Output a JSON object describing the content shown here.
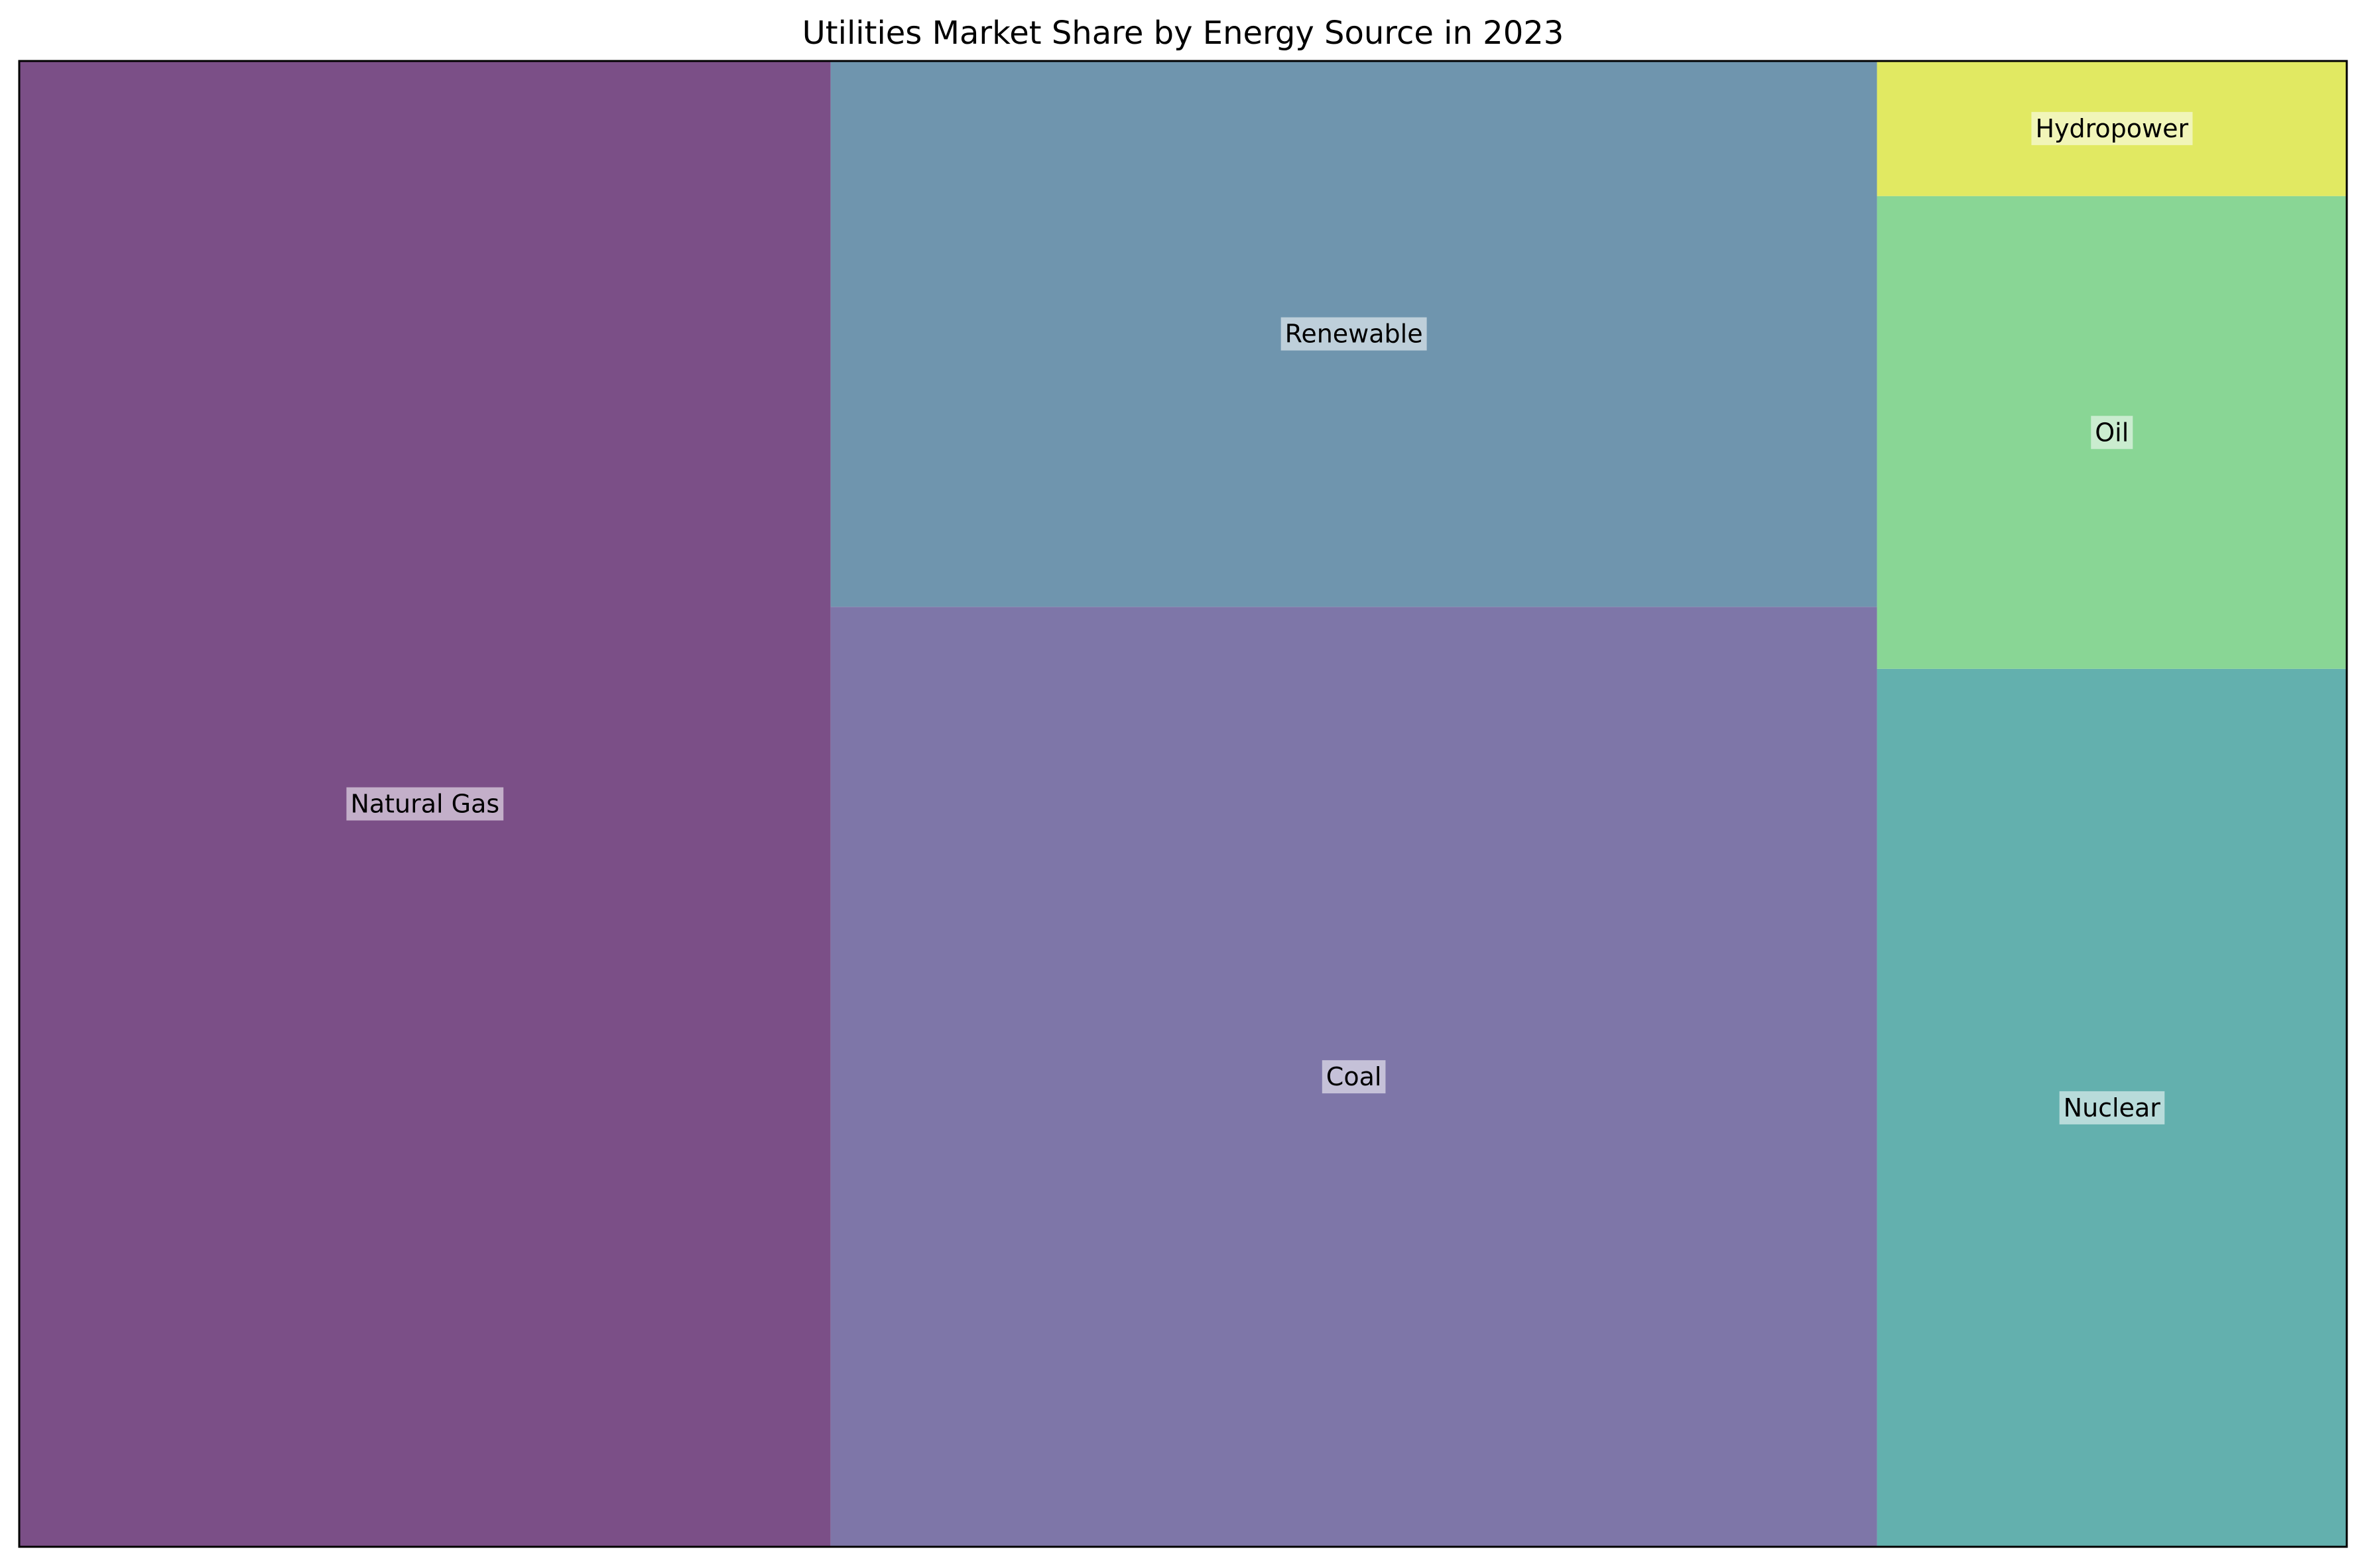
{
  "chart_data": {
    "type": "treemap",
    "title": "Utilities Market Share by Energy Source in 2023",
    "categories": [
      "Natural Gas",
      "Coal",
      "Renewable",
      "Nuclear",
      "Oil",
      "Hydropower"
    ],
    "values": [
      38,
      31,
      18,
      13,
      7,
      2
    ],
    "colors": [
      "#7b4f87",
      "#7e76a8",
      "#6f95ae",
      "#63b0ae",
      "#89d695",
      "#e1e962"
    ],
    "xlabel": "",
    "ylabel": "",
    "grid": false,
    "legend": "none"
  }
}
